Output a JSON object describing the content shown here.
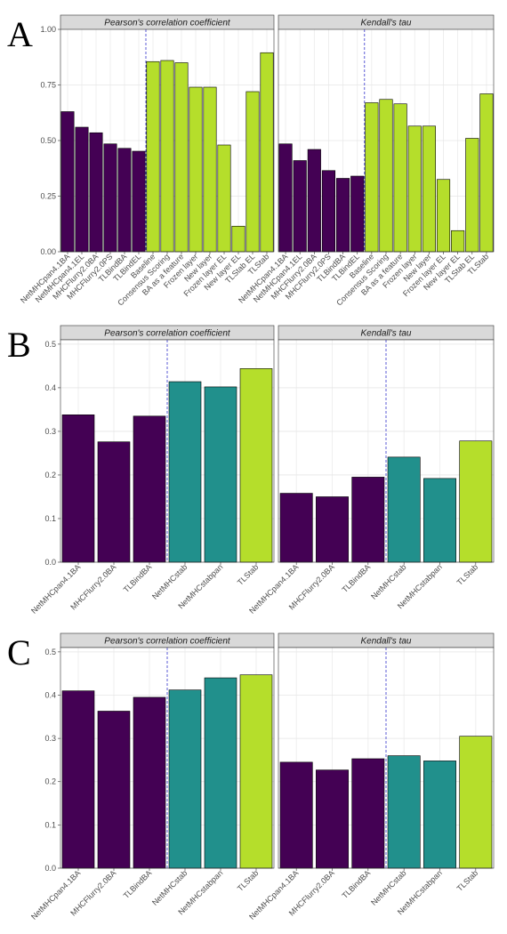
{
  "panel_labels": [
    "A",
    "B",
    "C"
  ],
  "chart_data": [
    {
      "type": "bar",
      "title": "Pearson's correlation coefficient",
      "categories": [
        "NetMHCpan4.1BA",
        "NetMHCpan4.1EL",
        "MHCFlurry2.0BA",
        "MHCFlurry2.0PS",
        "TLBindBA",
        "TLBindEL",
        "Baseline",
        "Consensus Scoring",
        "BA as a feature",
        "Frozen layer",
        "New layer",
        "Frozen layer EL",
        "New layer EL",
        "TLStab EL",
        "TLStab"
      ],
      "values": [
        0.63,
        0.56,
        0.535,
        0.485,
        0.465,
        0.452,
        0.855,
        0.86,
        0.85,
        0.74,
        0.74,
        0.48,
        0.115,
        0.72,
        0.895
      ],
      "colors": [
        "#440154",
        "#440154",
        "#440154",
        "#440154",
        "#440154",
        "#440154",
        "#b5de2b",
        "#b5de2b",
        "#b5de2b",
        "#b5de2b",
        "#b5de2b",
        "#b5de2b",
        "#b5de2b",
        "#b5de2b",
        "#b5de2b"
      ],
      "separator_after": 5,
      "ylim": [
        0,
        1
      ],
      "yticks": [
        {
          "value": 0,
          "label": "0.00"
        },
        0.25,
        {
          "value": 0.5,
          "label": "0.50"
        },
        0.75,
        {
          "value": 1,
          "label": "1.00"
        }
      ],
      "grid": true
    },
    {
      "type": "bar",
      "title": "Kendall's tau",
      "categories": [
        "NetMHCpan4.1BA",
        "NetMHCpan4.1EL",
        "MHCFlurry2.0BA",
        "MHCFlurry2.0PS",
        "TLBindBA",
        "TLBindEL",
        "Baseline",
        "Consensus Scoring",
        "BA as a feature",
        "Frozen layer",
        "New layer",
        "Frozen layer EL",
        "New layer EL",
        "TLStab EL",
        "TLStab"
      ],
      "values": [
        0.485,
        0.41,
        0.46,
        0.365,
        0.33,
        0.34,
        0.67,
        0.685,
        0.665,
        0.565,
        0.565,
        0.325,
        0.095,
        0.51,
        0.71
      ],
      "colors": [
        "#440154",
        "#440154",
        "#440154",
        "#440154",
        "#440154",
        "#440154",
        "#b5de2b",
        "#b5de2b",
        "#b5de2b",
        "#b5de2b",
        "#b5de2b",
        "#b5de2b",
        "#b5de2b",
        "#b5de2b",
        "#b5de2b"
      ],
      "separator_after": 5,
      "ylim": [
        0,
        1
      ],
      "yticks": [
        {
          "value": 0,
          "label": "0.00"
        },
        0.25,
        {
          "value": 0.5,
          "label": "0.50"
        },
        0.75,
        {
          "value": 1,
          "label": "1.00"
        }
      ],
      "grid": true
    },
    {
      "type": "bar",
      "title": "Pearson's correlation coefficient",
      "categories": [
        "NetMHCpan4.1BA",
        "MHCFlurry2.0BA",
        "TLBindBA",
        "NetMHCstab",
        "NetMHCstabpan",
        "TLStab"
      ],
      "values": [
        0.338,
        0.276,
        0.335,
        0.414,
        0.402,
        0.444
      ],
      "colors": [
        "#440154",
        "#440154",
        "#440154",
        "#21908c",
        "#21908c",
        "#b5de2b"
      ],
      "separator_after": 2,
      "ylim": [
        0,
        0.51
      ],
      "yticks": [
        {
          "value": 0,
          "label": "0.0"
        },
        0.1,
        0.2,
        0.3,
        0.4,
        0.5
      ],
      "grid": true
    },
    {
      "type": "bar",
      "title": "Kendall's tau",
      "categories": [
        "NetMHCpan4.1BA",
        "MHCFlurry2.0BA",
        "TLBindBA",
        "NetMHCstab",
        "NetMHCstabpan",
        "TLStab"
      ],
      "values": [
        0.158,
        0.15,
        0.195,
        0.241,
        0.192,
        0.278
      ],
      "colors": [
        "#440154",
        "#440154",
        "#440154",
        "#21908c",
        "#21908c",
        "#b5de2b"
      ],
      "separator_after": 2,
      "ylim": [
        0,
        0.51
      ],
      "yticks": [
        {
          "value": 0,
          "label": "0.0"
        },
        0.1,
        0.2,
        0.3,
        0.4,
        0.5
      ],
      "grid": true
    },
    {
      "type": "bar",
      "title": "Pearson's correlation coefficient",
      "categories": [
        "NetMHCpan4.1BA",
        "MHCFlurry2.0BA",
        "TLBindBA",
        "NetMHCstab",
        "NetMHCstabpan",
        "TLStab"
      ],
      "values": [
        0.41,
        0.363,
        0.395,
        0.412,
        0.44,
        0.447
      ],
      "colors": [
        "#440154",
        "#440154",
        "#440154",
        "#21908c",
        "#21908c",
        "#b5de2b"
      ],
      "separator_after": 2,
      "ylim": [
        0,
        0.51
      ],
      "yticks": [
        {
          "value": 0,
          "label": "0.0"
        },
        0.1,
        0.2,
        0.3,
        0.4,
        0.5
      ],
      "grid": true
    },
    {
      "type": "bar",
      "title": "Kendall's tau",
      "categories": [
        "NetMHCpan4.1BA",
        "MHCFlurry2.0BA",
        "TLBindBA",
        "NetMHCstab",
        "NetMHCstabpan",
        "TLStab"
      ],
      "values": [
        0.245,
        0.227,
        0.253,
        0.26,
        0.248,
        0.305
      ],
      "colors": [
        "#440154",
        "#440154",
        "#440154",
        "#21908c",
        "#21908c",
        "#b5de2b"
      ],
      "separator_after": 2,
      "ylim": [
        0,
        0.51
      ],
      "yticks": [
        {
          "value": 0,
          "label": "0.0"
        },
        0.1,
        0.2,
        0.3,
        0.4,
        0.5
      ],
      "grid": true
    }
  ]
}
